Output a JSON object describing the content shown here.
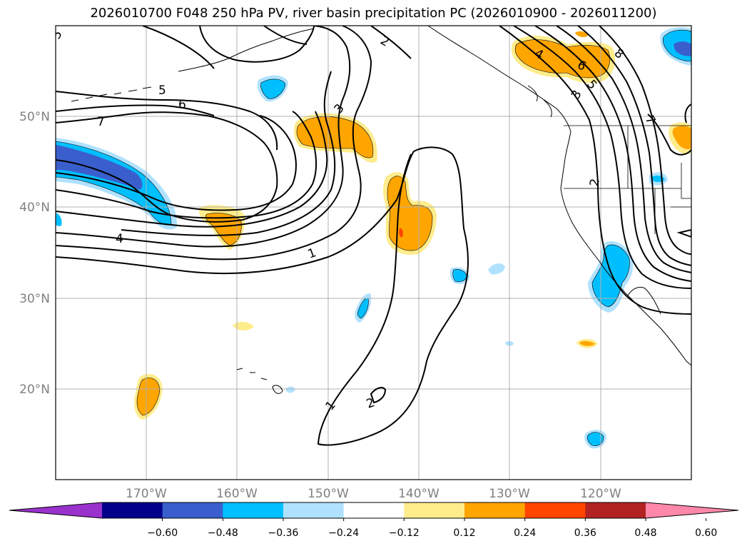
{
  "title": "2026010700 F048 250 hPa PV, river basin precipitation PC (2026010900 - 2026011200)",
  "lat_labels": [
    "50°N",
    "40°N",
    "30°N",
    "20°N"
  ],
  "lon_labels": [
    "170°W",
    "160°W",
    "150°W",
    "140°W",
    "130°W",
    "120°W"
  ],
  "pv_contour_labels": [
    "5",
    "2",
    "5",
    "6",
    "7",
    "3",
    "4",
    "6",
    "8",
    "5",
    "3",
    "7",
    "2",
    "4",
    "1",
    "1",
    "2"
  ],
  "colorbar": {
    "ticks": [
      "−0.60",
      "−0.48",
      "−0.36",
      "−0.24",
      "−0.12",
      "0.12",
      "0.24",
      "0.36",
      "0.48",
      "0.60"
    ],
    "colors": [
      "#9932cc",
      "#00008b",
      "#3a5fcd",
      "#00bfff",
      "#b0e2ff",
      "#ffffff",
      "#ffec8b",
      "#ffa500",
      "#ff4500",
      "#b22222",
      "#ff88aa"
    ]
  },
  "colors": {
    "pos_light": "#ffec8b",
    "pos_mid": "#ffa500",
    "pos_strong": "#ff4500",
    "neg_light": "#b0e2ff",
    "neg_mid": "#00bfff",
    "neg_strong": "#3a5fcd",
    "grid": "#b0b0b0"
  }
}
